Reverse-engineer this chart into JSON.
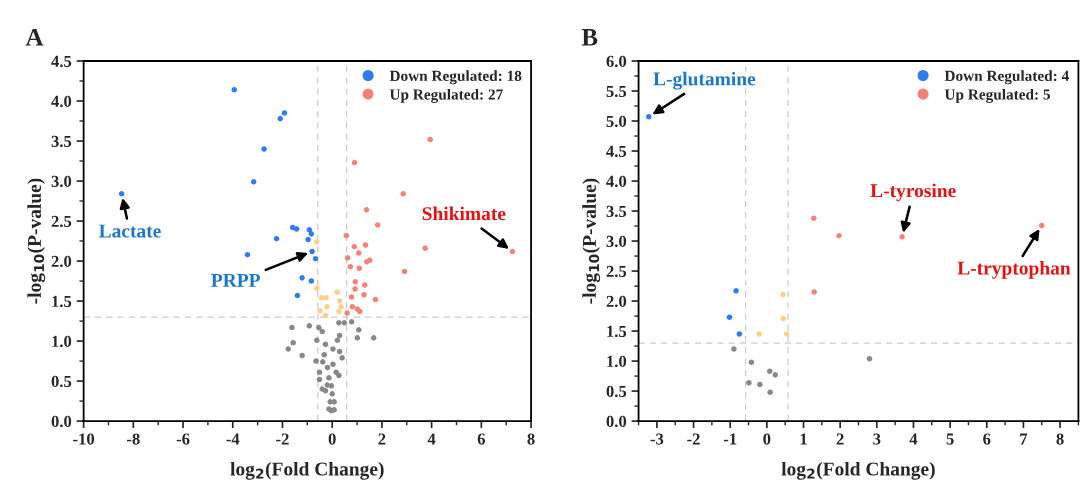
{
  "chart_data": [
    {
      "type": "scatter",
      "title": "A",
      "xlabel": "log$_{2}$(Fold Change)",
      "ylabel": "-log$_{10}$(P-value)",
      "xlim": [
        -10,
        8
      ],
      "xticks": [
        -10,
        -8,
        -6,
        -4,
        -2,
        0,
        2,
        4,
        6,
        8
      ],
      "ylim": [
        0,
        4.5
      ],
      "yticks": [
        {
          "value": 0,
          "label": "0.0"
        },
        0.5,
        {
          "value": 1,
          "label": "1.0"
        },
        1.5,
        {
          "value": 2,
          "label": "2.0"
        },
        2.5,
        {
          "value": 3,
          "label": "3.0"
        },
        3.5,
        {
          "value": 4,
          "label": "4.0"
        },
        4.5
      ],
      "marker": "circle",
      "legend": "top right",
      "grid": false,
      "ref_lines": [
        {
          "axis": "x",
          "value": -0.58,
          "color": "#cccccc",
          "line_style": "dashed"
        },
        {
          "axis": "x",
          "value": 0.58,
          "color": "#cccccc",
          "line_style": "dashed"
        },
        {
          "axis": "y",
          "value": 1.3,
          "color": "#cccccc",
          "line_style": "dashed"
        }
      ],
      "series": [
        {
          "name": "Down Regulated: 18",
          "color": "#2f7bf0",
          "x": [
            -8.47,
            -3.94,
            -2.74,
            -3.16,
            -3.41,
            -2.09,
            -1.92,
            -1.59,
            -1.43,
            -2.24,
            -0.92,
            -0.84,
            -0.97,
            -0.81,
            -0.67,
            -1.21,
            -0.84,
            -1.4
          ],
          "values": [
            2.84,
            4.14,
            3.4,
            2.99,
            2.08,
            3.78,
            3.85,
            2.42,
            2.4,
            2.28,
            2.39,
            2.34,
            2.27,
            2.12,
            2.03,
            1.79,
            1.75,
            1.57
          ]
        },
        {
          "name": "Up Regulated: 27",
          "color": "#f6807a",
          "x": [
            3.94,
            0.9,
            2.86,
            1.38,
            1.83,
            0.57,
            3.74,
            0.89,
            1.34,
            1.07,
            0.62,
            1.39,
            1.51,
            0.73,
            1.09,
            2.91,
            0.93,
            1.31,
            0.92,
            1.28,
            0.78,
            1.74,
            0.81,
            1.01,
            1.11,
            0.6,
            7.25
          ],
          "values": [
            3.52,
            3.23,
            2.84,
            2.64,
            2.45,
            2.32,
            2.16,
            2.18,
            2.2,
            2.1,
            2.04,
            1.99,
            2.01,
            1.93,
            1.91,
            1.87,
            1.74,
            1.7,
            1.65,
            1.58,
            1.55,
            1.52,
            1.43,
            1.4,
            1.37,
            1.35,
            2.12
          ]
        },
        {
          "color": "#fdd08a",
          "x": [
            -0.62,
            -0.62,
            -0.43,
            -0.24,
            0.2,
            0.3,
            -0.21,
            -0.49,
            0.36,
            0.27,
            -0.27
          ],
          "values": [
            2.24,
            1.66,
            1.54,
            1.54,
            1.61,
            1.5,
            1.43,
            1.38,
            1.43,
            1.37,
            1.32
          ]
        },
        {
          "color": "#888888",
          "x": [
            -1.62,
            -0.92,
            0.27,
            0.49,
            0.78,
            -0.54,
            -0.4,
            1.07,
            1.01,
            1.67,
            -0.62,
            0.3,
            0.21,
            -1.57,
            -0.27,
            -1.77,
            0.03,
            0.3,
            -1.21,
            -0.32,
            0.4,
            -0.65,
            -0.38,
            0.03,
            -0.19,
            -0.51,
            0.16,
            0.27,
            -0.51,
            -0.13,
            -0.2,
            -0.03,
            -0.4,
            -0.27,
            0.0,
            -0.08,
            0.08,
            -0.13,
            -0.03,
            0.08
          ],
          "values": [
            1.17,
            1.19,
            1.23,
            1.23,
            1.24,
            1.17,
            1.12,
            1.14,
            1.04,
            1.04,
            1.01,
            1.07,
            1.01,
            0.98,
            0.96,
            0.9,
            0.9,
            0.87,
            0.82,
            0.83,
            0.79,
            0.75,
            0.74,
            0.71,
            0.67,
            0.61,
            0.61,
            0.57,
            0.52,
            0.54,
            0.45,
            0.44,
            0.4,
            0.38,
            0.34,
            0.24,
            0.24,
            0.15,
            0.13,
            0.14
          ]
        }
      ],
      "annotations": [
        {
          "text": "Lactate",
          "x": -8.47,
          "y": 2.84
        },
        {
          "text": "PRPP",
          "x": -0.81,
          "y": 2.12
        },
        {
          "text": "Shikimate",
          "x": 7.25,
          "y": 2.12
        }
      ]
    },
    {
      "type": "scatter",
      "title": "B",
      "xlabel": "log$_{2}$(Fold Change)",
      "ylabel": "-log$_{10}$(P-value)",
      "xlim": [
        -3.5,
        8.5
      ],
      "xticks": [
        -3,
        -2,
        -1,
        0,
        1,
        2,
        3,
        4,
        5,
        6,
        7,
        8
      ],
      "ylim": [
        0,
        6
      ],
      "yticks": [
        {
          "value": 0,
          "label": "0.0"
        },
        0.5,
        {
          "value": 1,
          "label": "1.0"
        },
        1.5,
        {
          "value": 2,
          "label": "2.0"
        },
        2.5,
        {
          "value": 3,
          "label": "3.0"
        },
        3.5,
        {
          "value": 4,
          "label": "4.0"
        },
        4.5,
        {
          "value": 5,
          "label": "5.0"
        },
        5.5,
        {
          "value": 6,
          "label": "6.0"
        }
      ],
      "marker": "circle",
      "legend": "top right",
      "grid": false,
      "ref_lines": [
        {
          "axis": "x",
          "value": -0.58,
          "color": "#cccccc",
          "line_style": "dashed"
        },
        {
          "axis": "x",
          "value": 0.58,
          "color": "#cccccc",
          "line_style": "dashed"
        },
        {
          "axis": "y",
          "value": 1.3,
          "color": "#cccccc",
          "line_style": "dashed"
        }
      ],
      "series": [
        {
          "name": "Down Regulated: 4",
          "color": "#2f7bf0",
          "x": [
            -3.22,
            -0.84,
            -1.02,
            -0.75
          ],
          "values": [
            5.07,
            2.17,
            1.73,
            1.45
          ]
        },
        {
          "name": "Up Regulated: 5",
          "color": "#f6807a",
          "x": [
            1.28,
            1.97,
            1.29,
            3.69,
            7.5
          ],
          "values": [
            3.38,
            3.09,
            2.15,
            3.07,
            3.26
          ]
        },
        {
          "color": "#fdd08a",
          "x": [
            -0.21,
            0.44,
            0.45,
            0.54
          ],
          "values": [
            1.45,
            2.11,
            1.71,
            1.45
          ]
        },
        {
          "color": "#888888",
          "x": [
            -0.9,
            -0.42,
            0.08,
            0.23,
            -0.49,
            -0.19,
            0.09,
            2.8
          ],
          "values": [
            1.2,
            0.98,
            0.83,
            0.77,
            0.64,
            0.61,
            0.48,
            1.04
          ]
        }
      ],
      "annotations": [
        {
          "text": "L-glutamine",
          "x": -3.22,
          "y": 5.07
        },
        {
          "text": "L-tyrosine",
          "x": 3.69,
          "y": 3.07
        },
        {
          "text": "L-tryptophan",
          "x": 7.5,
          "y": 3.26
        }
      ]
    }
  ]
}
